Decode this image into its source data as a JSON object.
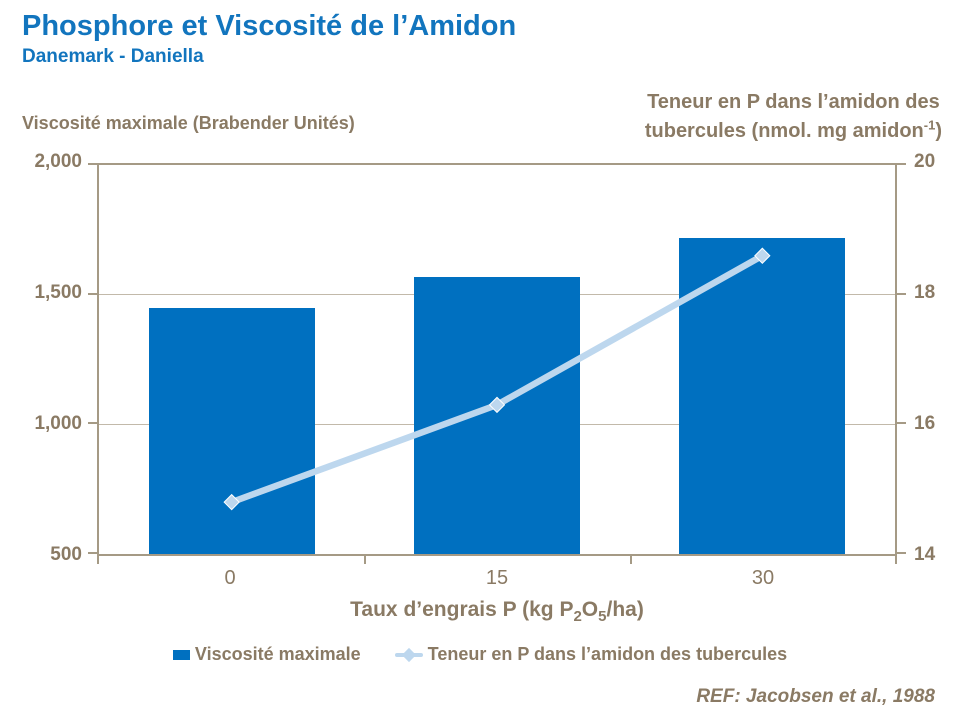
{
  "header": {
    "title": "Phosphore et Viscosité de l’Amidon",
    "subtitle": "Danemark - Daniella"
  },
  "left_axis": {
    "label": "Viscosité maximale (Brabender Unités)",
    "ticks": [
      "2,000",
      "1,500",
      "1,000",
      "500"
    ]
  },
  "right_axis": {
    "label_line1": "Teneur en P dans l’amidon des",
    "label_line2_pre": "tubercules (nmol. mg amidon",
    "label_superscript": "-1",
    "label_line2_post": ")",
    "ticks": [
      "20",
      "18",
      "16",
      "14"
    ]
  },
  "x_axis": {
    "title_pre": "Taux d’engrais P (kg P",
    "title_sub1": "2",
    "title_mid": "O",
    "title_sub2": "5",
    "title_post": "/ha)",
    "categories": [
      "0",
      "15",
      "30"
    ]
  },
  "legend": {
    "bar_label": "Viscosité maximale",
    "line_label": "Teneur en P dans l’amidon des tubercules"
  },
  "footer": {
    "ref": "REF: Jacobsen et al., 1988"
  },
  "colors": {
    "title_blue": "#1275BE",
    "bar_blue": "#0070C0",
    "line_lightblue": "#BDD7EE",
    "text_brown": "#8A7A64",
    "axis_frame": "#A59A85",
    "gridline": "#C2B9AA"
  },
  "chart_data": {
    "type": "bar",
    "title": "Phosphore et Viscosité de l’Amidon",
    "subtitle": "Danemark - Daniella",
    "categories": [
      "0",
      "15",
      "30"
    ],
    "series": [
      {
        "name": "Viscosité maximale",
        "type": "bar",
        "axis": "left",
        "color": "#0070C0",
        "values": [
          1450,
          1570,
          1720
        ]
      },
      {
        "name": "Teneur en P dans l’amidon des tubercules",
        "type": "line",
        "axis": "right",
        "color": "#BDD7EE",
        "values": [
          14.8,
          16.3,
          18.6
        ]
      }
    ],
    "xlabel": "Taux d’engrais P (kg P2O5/ha)",
    "left_ylabel": "Viscosité maximale (Brabender Unités)",
    "right_ylabel": "Teneur en P dans l’amidon des tubercules (nmol. mg amidon-1)",
    "left_ylim": [
      500,
      2000
    ],
    "left_ticks": [
      2000,
      1500,
      1000,
      500
    ],
    "right_ylim": [
      14,
      20
    ],
    "right_ticks": [
      20,
      18,
      16,
      14
    ],
    "gridlines_left_values": [
      1500,
      1000
    ],
    "grid": "horizontal",
    "legend_position": "bottom",
    "reference": "REF: Jacobsen et al., 1988"
  }
}
